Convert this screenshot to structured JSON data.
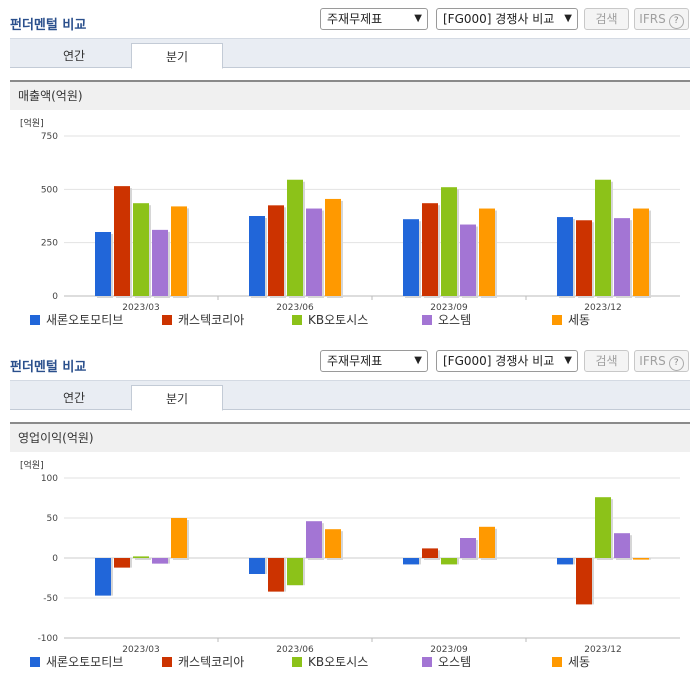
{
  "header": {
    "title": "펀더멘털 비교",
    "select1": "주재무제표",
    "select2": "[FG000] 경쟁사 비교",
    "search_btn": "검색",
    "ifrs_label": "IFRS",
    "help": "?"
  },
  "tabs": [
    "연간",
    "분기"
  ],
  "legend_colors": [
    "#2166d9",
    "#cc3300",
    "#8cc219",
    "#a375d4",
    "#ff9900"
  ],
  "charts": [
    {
      "section_title": "매출액(억원)",
      "unit": "[억원]"
    },
    {
      "section_title": "영업이익(억원)",
      "unit": "[억원]"
    }
  ],
  "chart_data": [
    {
      "type": "bar",
      "title": "매출액(억원)",
      "categories": [
        "2023/03",
        "2023/06",
        "2023/09",
        "2023/12"
      ],
      "yticks": [
        "750",
        "500",
        "250",
        "0"
      ],
      "ylim": [
        0,
        750
      ],
      "series": [
        {
          "name": "새론오토모티브",
          "values": [
            300,
            375,
            360,
            370
          ]
        },
        {
          "name": "캐스텍코리아",
          "values": [
            515,
            425,
            435,
            355
          ]
        },
        {
          "name": "KB오토시스",
          "values": [
            435,
            545,
            510,
            545
          ]
        },
        {
          "name": "오스템",
          "values": [
            310,
            410,
            335,
            365
          ]
        },
        {
          "name": "세동",
          "values": [
            420,
            455,
            410,
            410
          ]
        }
      ]
    },
    {
      "type": "bar",
      "title": "영업이익(억원)",
      "categories": [
        "2023/03",
        "2023/06",
        "2023/09",
        "2023/12"
      ],
      "yticks": [
        "100",
        "50",
        "0",
        "-50",
        "-100"
      ],
      "ylim": [
        -100,
        100
      ],
      "series": [
        {
          "name": "새론오토모티브",
          "values": [
            -47,
            -20,
            -8,
            -8
          ]
        },
        {
          "name": "캐스텍코리아",
          "values": [
            -12,
            -42,
            12,
            -58
          ]
        },
        {
          "name": "KB오토시스",
          "values": [
            2,
            -34,
            -8,
            76
          ]
        },
        {
          "name": "오스템",
          "values": [
            -7,
            46,
            25,
            31
          ]
        },
        {
          "name": "세동",
          "values": [
            50,
            36,
            39,
            -2
          ]
        }
      ]
    }
  ]
}
